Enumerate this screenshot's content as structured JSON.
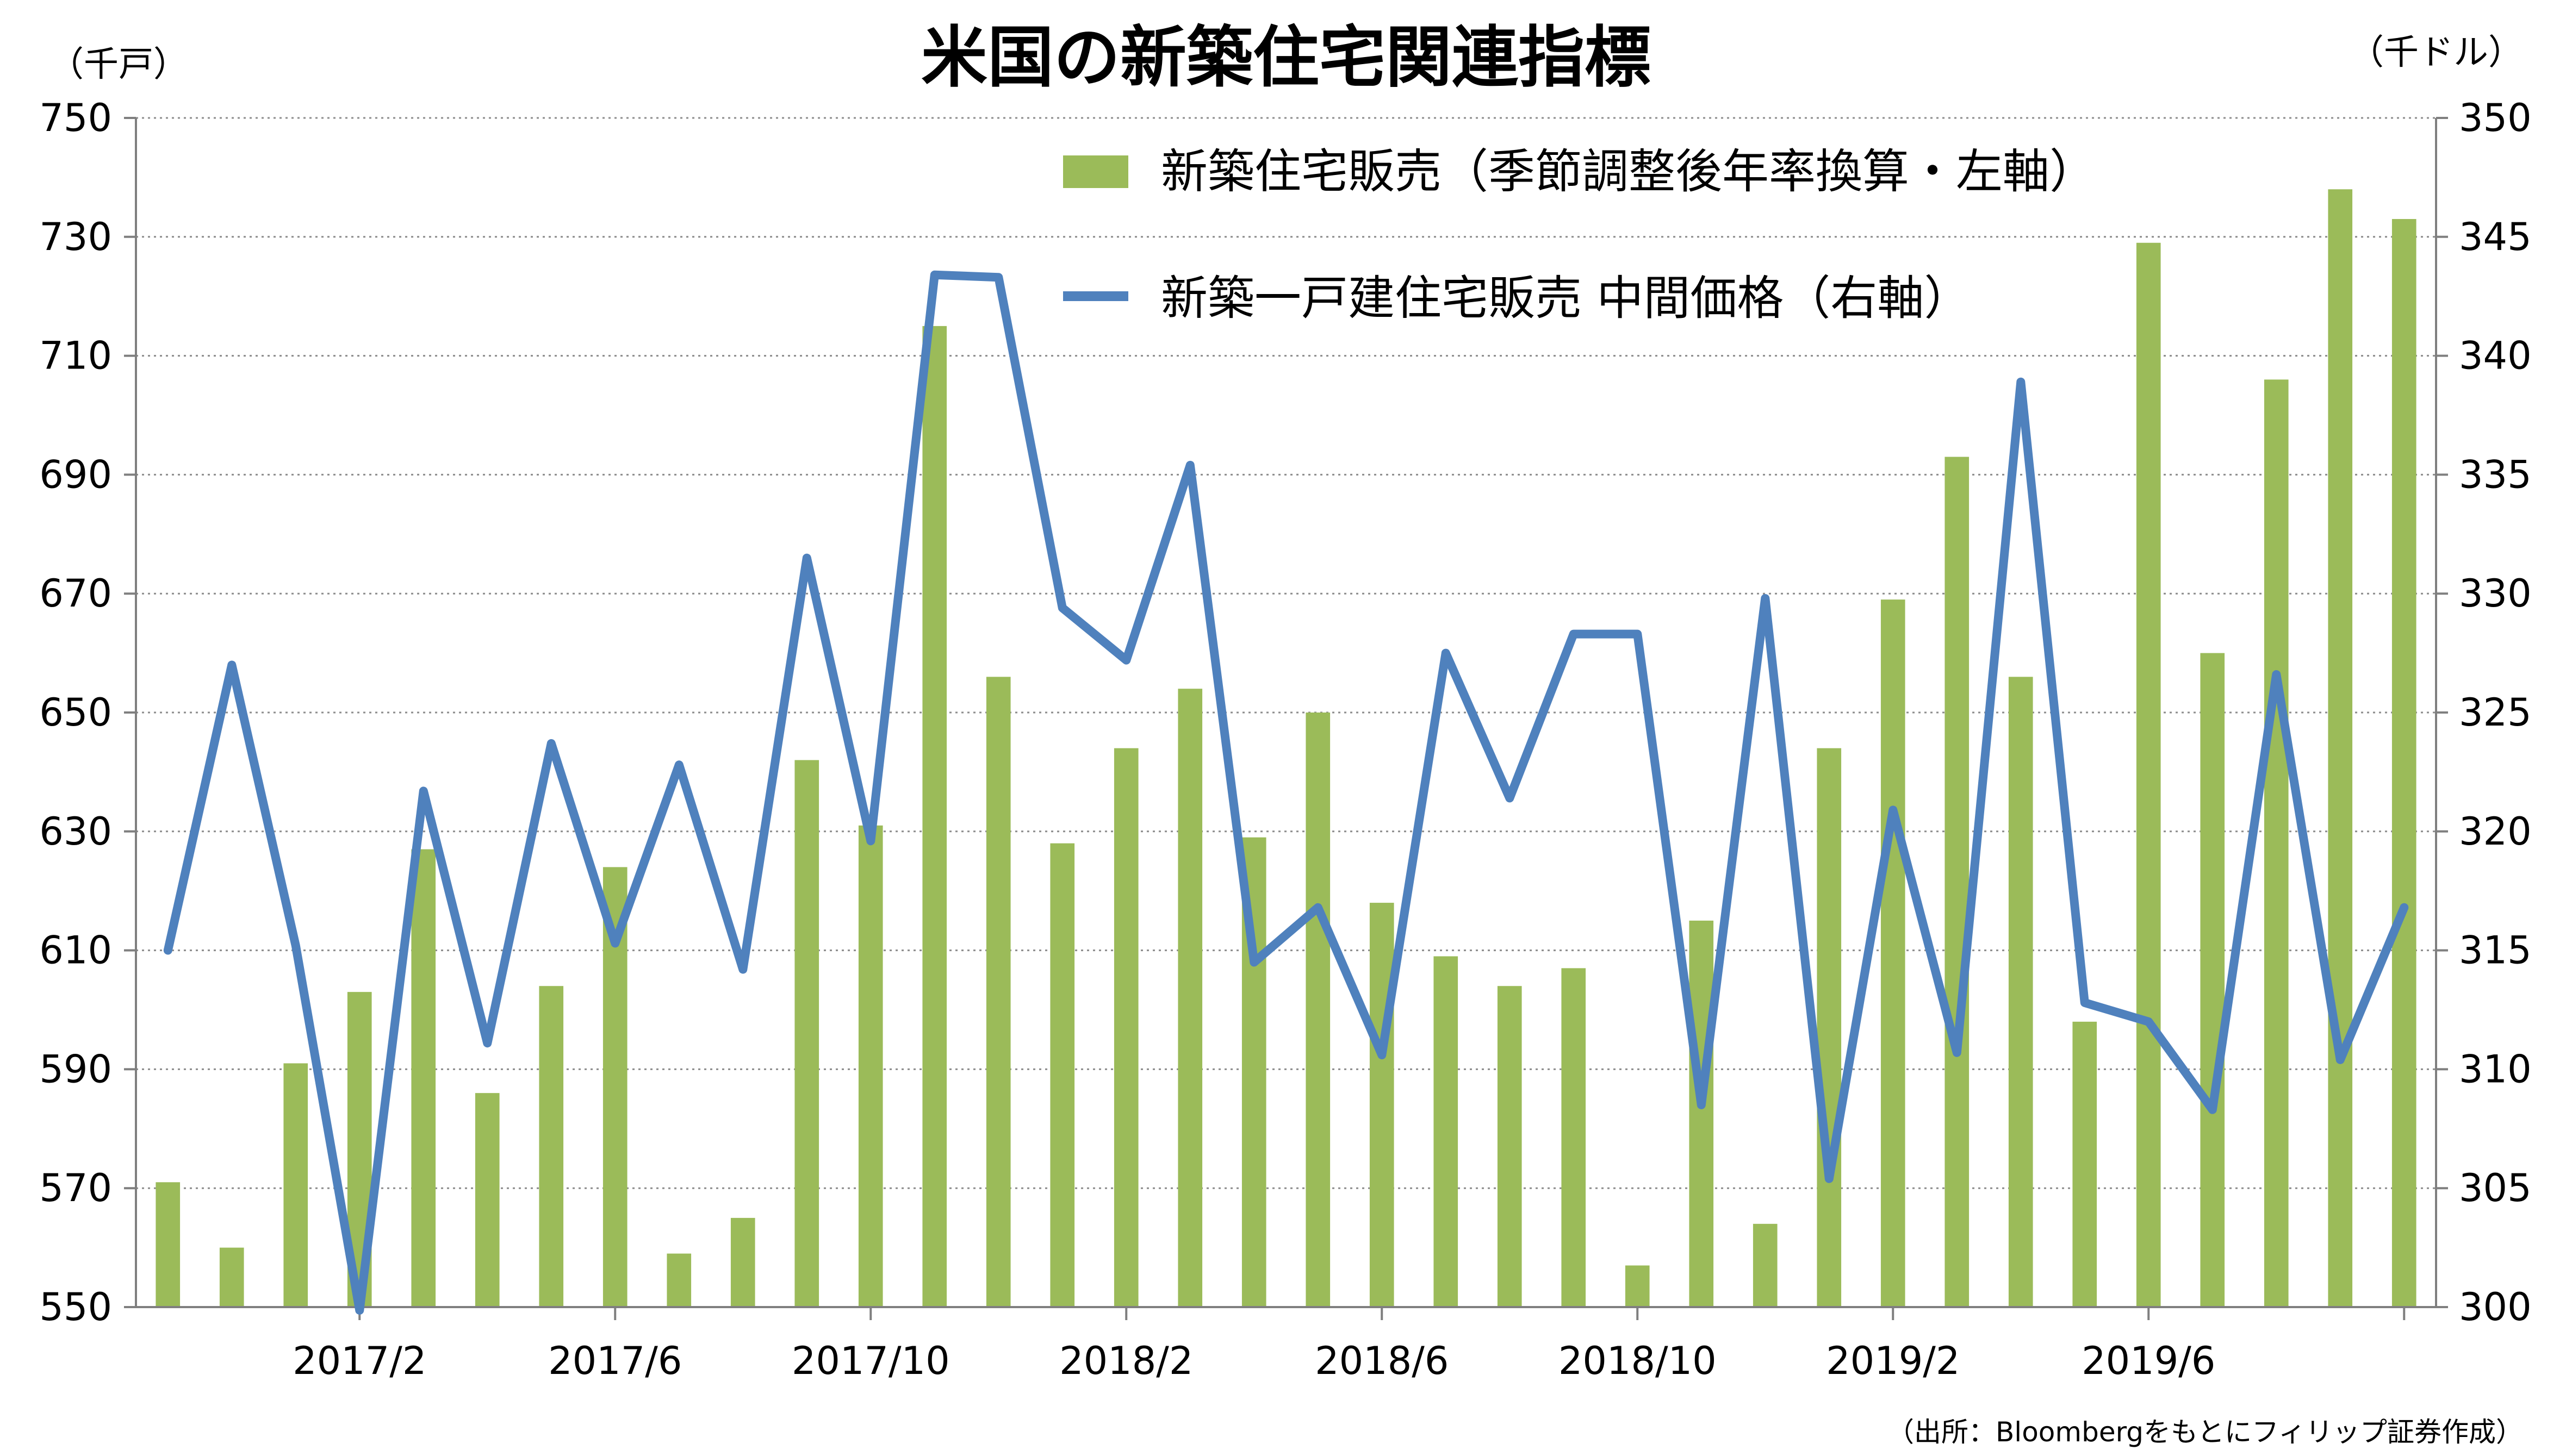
{
  "chart_data": {
    "type": "bar+line",
    "title": "米国の新築住宅関連指標",
    "left_unit": "（千戸）",
    "right_unit": "（千ドル）",
    "source": "（出所：Bloombergをもとにフィリップ証券作成）",
    "x_tick_labels": [
      "2017/2",
      "2017/6",
      "2017/10",
      "2018/2",
      "2018/6",
      "2018/10",
      "2019/2",
      "2019/6"
    ],
    "y_left": {
      "min": 550,
      "max": 750,
      "ticks": [
        550,
        570,
        590,
        610,
        630,
        650,
        670,
        690,
        710,
        730,
        750
      ]
    },
    "y_right": {
      "min": 300,
      "max": 350,
      "ticks": [
        300,
        305,
        310,
        315,
        320,
        325,
        330,
        335,
        340,
        345,
        350
      ]
    },
    "grid": true,
    "legend_position": "top-right",
    "periods": [
      "2016/11",
      "2016/12",
      "2017/1",
      "2017/2",
      "2017/3",
      "2017/4",
      "2017/5",
      "2017/6",
      "2017/7",
      "2017/8",
      "2017/9",
      "2017/10",
      "2017/11",
      "2017/12",
      "2018/1",
      "2018/2",
      "2018/3",
      "2018/4",
      "2018/5",
      "2018/6",
      "2018/7",
      "2018/8",
      "2018/9",
      "2018/10",
      "2018/11",
      "2018/12",
      "2019/1",
      "2019/2",
      "2019/3",
      "2019/4",
      "2019/5",
      "2019/6",
      "2019/7",
      "2019/8",
      "2019/9",
      "2019/10"
    ],
    "series": [
      {
        "name": "新築住宅販売（季節調整後年率換算・左軸）",
        "type": "bar",
        "axis": "left",
        "color": "#9BBB59",
        "values": [
          571,
          560,
          591,
          603,
          627,
          586,
          604,
          624,
          559,
          565,
          642,
          631,
          715,
          656,
          628,
          644,
          654,
          629,
          650,
          618,
          609,
          604,
          607,
          557,
          615,
          564,
          644,
          669,
          693,
          656,
          598,
          729,
          660,
          706,
          738,
          733
        ]
      },
      {
        "name": "新築一戸建住宅販売 中間価格（右軸）",
        "type": "line",
        "axis": "right",
        "color": "#4F81BD",
        "values": [
          315.0,
          327.0,
          315.2,
          299.5,
          321.7,
          311.1,
          323.7,
          315.3,
          322.8,
          314.2,
          331.5,
          319.6,
          343.4,
          343.3,
          329.4,
          327.2,
          335.4,
          314.5,
          316.8,
          310.6,
          327.5,
          321.4,
          328.3,
          328.3,
          308.5,
          329.8,
          305.4,
          320.9,
          310.7,
          338.9,
          312.8,
          312.0,
          308.3,
          326.6,
          310.4,
          316.8
        ]
      }
    ]
  }
}
